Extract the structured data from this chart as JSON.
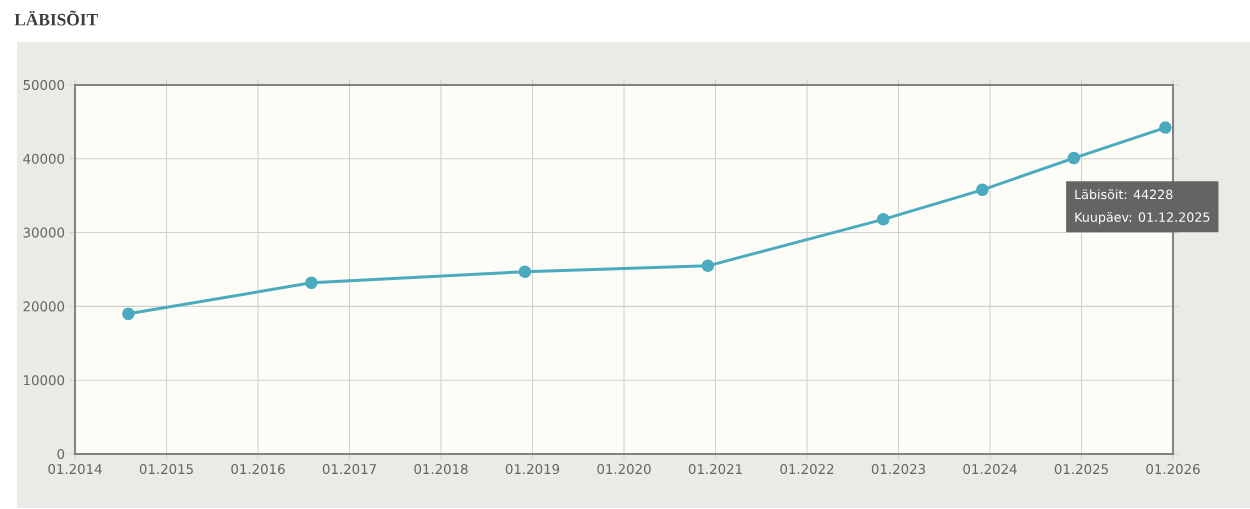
{
  "chart_data": {
    "type": "line",
    "title": "LÄBISÕIT",
    "x": [
      "2014-08",
      "2016-08",
      "2018-12",
      "2020-12",
      "2022-11",
      "2023-12",
      "2024-12",
      "2025-12-01"
    ],
    "values": [
      19000,
      23200,
      24700,
      25500,
      31800,
      35800,
      40100,
      44228
    ],
    "color": "#4aaabf",
    "marker": "circle",
    "line_style": "solid",
    "grid": true,
    "xlim": [
      "2014-01",
      "2026-01"
    ],
    "ylim": [
      0,
      50000
    ],
    "xticks": [
      {
        "value": "2014-01",
        "label": "01.2014"
      },
      {
        "value": "2015-01",
        "label": "01.2015"
      },
      {
        "value": "2016-01",
        "label": "01.2016"
      },
      {
        "value": "2017-01",
        "label": "01.2017"
      },
      {
        "value": "2018-01",
        "label": "01.2018"
      },
      {
        "value": "2019-01",
        "label": "01.2019"
      },
      {
        "value": "2020-01",
        "label": "01.2020"
      },
      {
        "value": "2021-01",
        "label": "01.2021"
      },
      {
        "value": "2022-01",
        "label": "01.2022"
      },
      {
        "value": "2023-01",
        "label": "01.2023"
      },
      {
        "value": "2024-01",
        "label": "01.2024"
      },
      {
        "value": "2025-01",
        "label": "01.2025"
      },
      {
        "value": "2026-01",
        "label": "01.2026"
      }
    ],
    "yticks": [
      0,
      10000,
      20000,
      30000,
      40000,
      50000
    ],
    "annotations": [
      "Läbisõit:  44228",
      "Kuupäev: 01.12.2025"
    ]
  }
}
